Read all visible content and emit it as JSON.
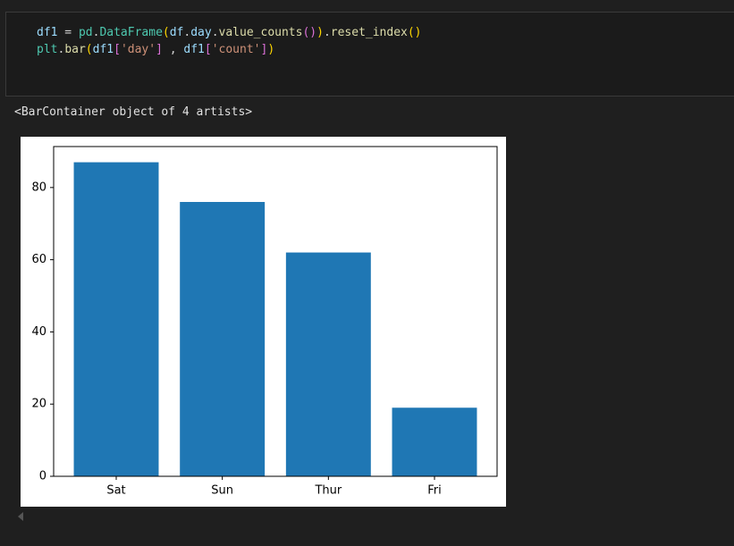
{
  "code": {
    "lines": [
      {
        "tokens": [
          {
            "text": "df1",
            "color": "#9cdcfe"
          },
          {
            "text": " = ",
            "color": "#d4d4d4"
          },
          {
            "text": "pd",
            "color": "#4ec9b0"
          },
          {
            "text": ".",
            "color": "#d4d4d4"
          },
          {
            "text": "DataFrame",
            "color": "#4ec9b0"
          },
          {
            "text": "(",
            "color": "#ffd700"
          },
          {
            "text": "df",
            "color": "#9cdcfe"
          },
          {
            "text": ".",
            "color": "#d4d4d4"
          },
          {
            "text": "day",
            "color": "#9cdcfe"
          },
          {
            "text": ".",
            "color": "#d4d4d4"
          },
          {
            "text": "value_counts",
            "color": "#dcdcaa"
          },
          {
            "text": "()",
            "color": "#da70d6"
          },
          {
            "text": ")",
            "color": "#ffd700"
          },
          {
            "text": ".",
            "color": "#d4d4d4"
          },
          {
            "text": "reset_index",
            "color": "#dcdcaa"
          },
          {
            "text": "()",
            "color": "#ffd700"
          }
        ]
      },
      {
        "tokens": [
          {
            "text": "plt",
            "color": "#4ec9b0"
          },
          {
            "text": ".",
            "color": "#d4d4d4"
          },
          {
            "text": "bar",
            "color": "#dcdcaa"
          },
          {
            "text": "(",
            "color": "#ffd700"
          },
          {
            "text": "df1",
            "color": "#9cdcfe"
          },
          {
            "text": "[",
            "color": "#da70d6"
          },
          {
            "text": "'day'",
            "color": "#ce9178"
          },
          {
            "text": "]",
            "color": "#da70d6"
          },
          {
            "text": " , ",
            "color": "#d4d4d4"
          },
          {
            "text": "df1",
            "color": "#9cdcfe"
          },
          {
            "text": "[",
            "color": "#da70d6"
          },
          {
            "text": "'count'",
            "color": "#ce9178"
          },
          {
            "text": "]",
            "color": "#da70d6"
          },
          {
            "text": ")",
            "color": "#ffd700"
          }
        ]
      }
    ]
  },
  "output": {
    "text": "<BarContainer object of 4 artists>"
  },
  "chart_data": {
    "type": "bar",
    "categories": [
      "Sat",
      "Sun",
      "Thur",
      "Fri"
    ],
    "values": [
      87,
      76,
      62,
      19
    ],
    "color": "#1f77b4",
    "ylim": [
      0,
      91.35
    ],
    "yticks": [
      0,
      20,
      40,
      60,
      80
    ]
  }
}
